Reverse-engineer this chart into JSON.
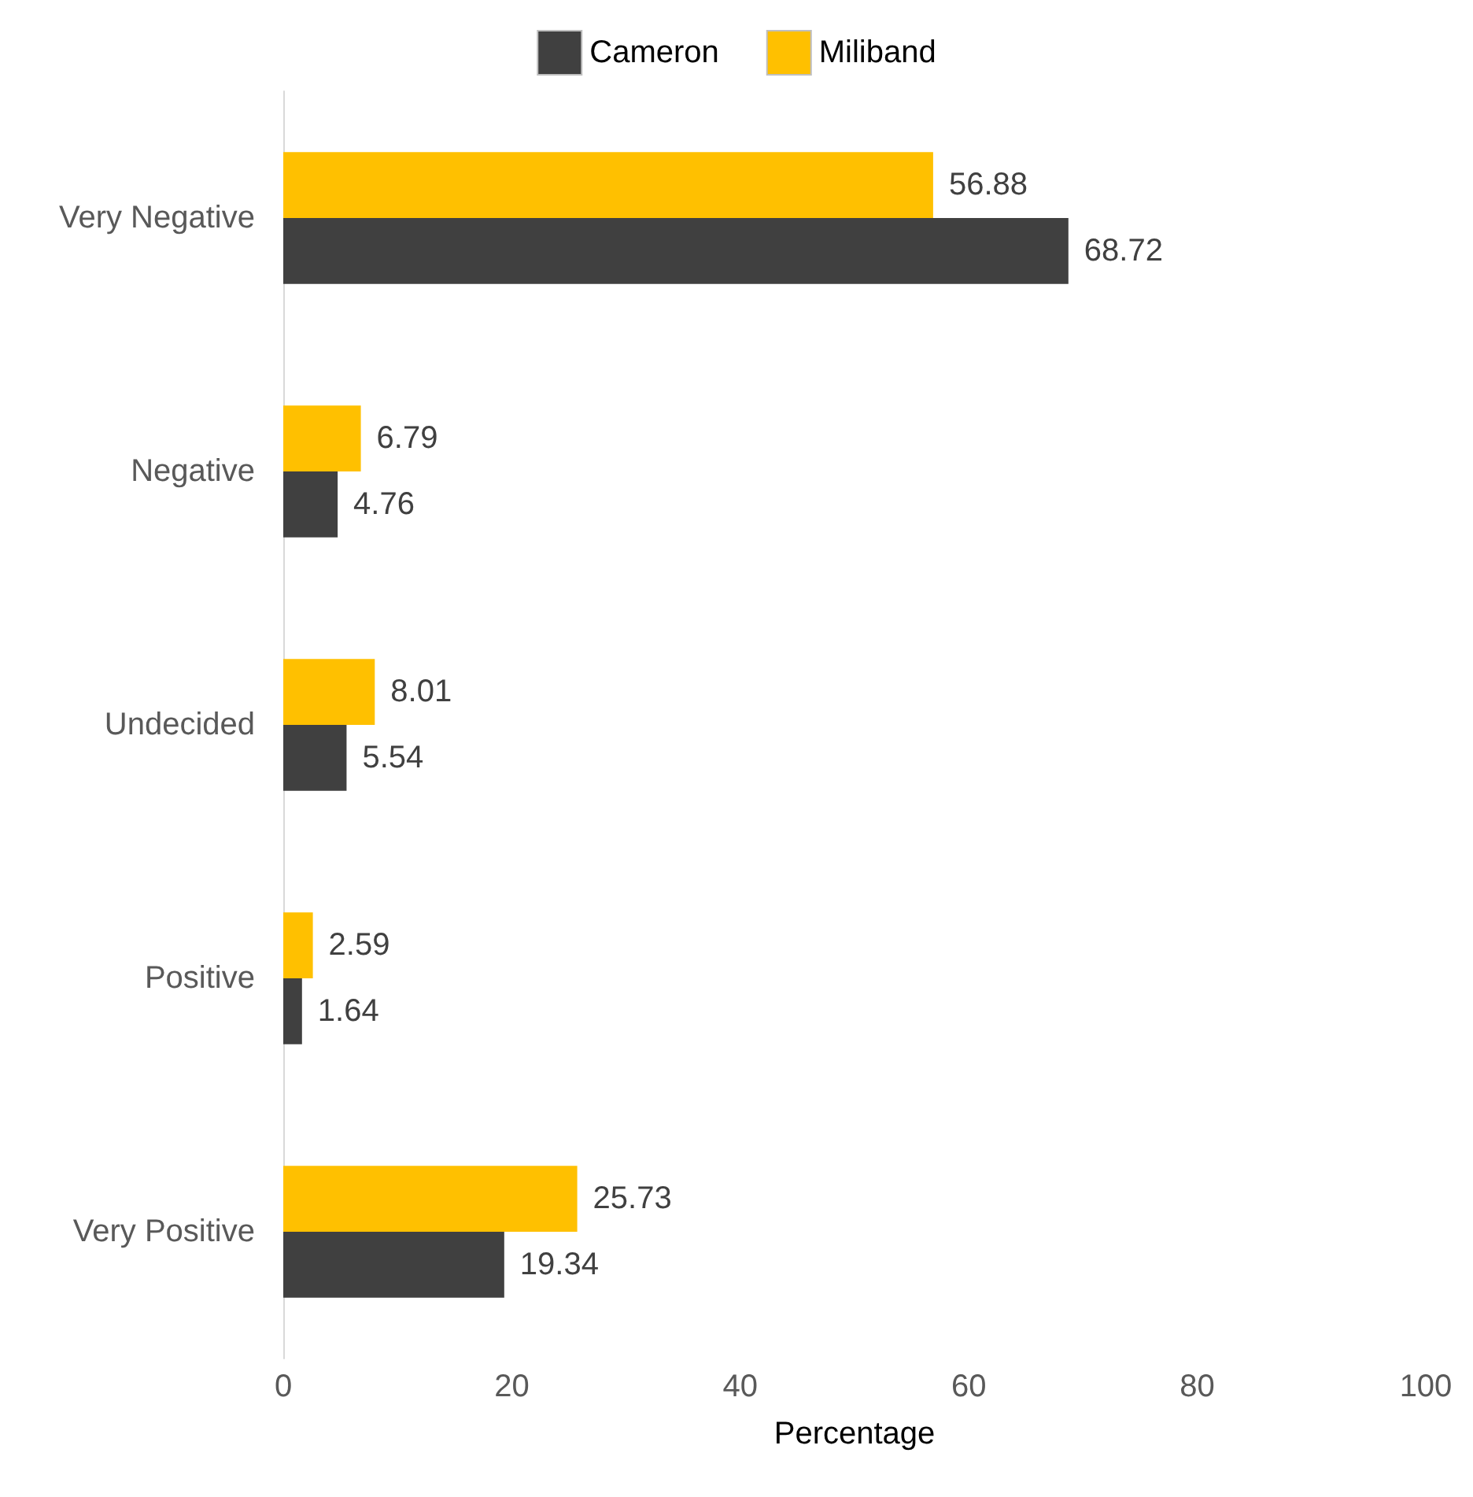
{
  "chart_data": {
    "type": "bar",
    "orientation": "horizontal",
    "xlabel": "Percentage",
    "categories": [
      "Very Negative",
      "Negative",
      "Undecided",
      "Positive",
      "Very Positive"
    ],
    "series": [
      {
        "name": "Cameron",
        "color": "#404040",
        "values": [
          68.72,
          4.76,
          5.54,
          1.64,
          19.34
        ]
      },
      {
        "name": "Miliband",
        "color": "#ffc000",
        "values": [
          56.88,
          6.79,
          8.01,
          2.59,
          25.73
        ]
      }
    ],
    "xlim": [
      0,
      100
    ],
    "xticks": [
      0,
      20,
      40,
      60,
      80,
      100
    ],
    "data_labels": true,
    "legend": "top",
    "grid": false
  }
}
